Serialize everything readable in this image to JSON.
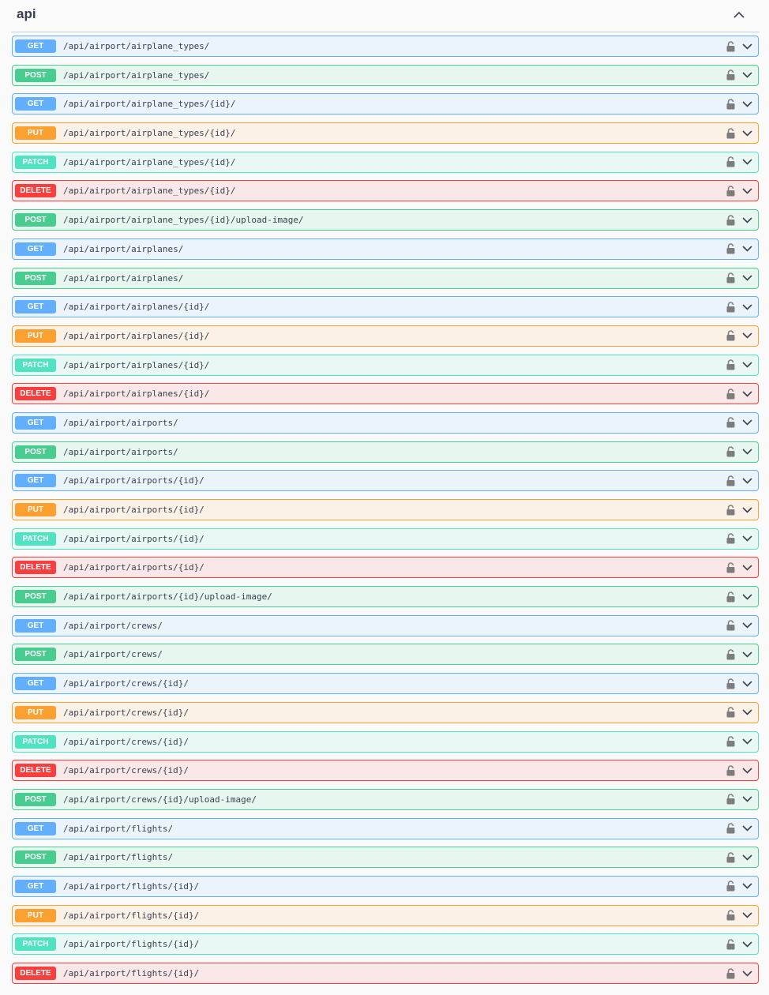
{
  "tag": {
    "title": "api",
    "toggle_icon": "chevron-up-icon"
  },
  "colors": {
    "get": "#61affe",
    "post": "#49cc90",
    "put": "#fca130",
    "patch": "#50e3c2",
    "delete": "#f93e3e"
  },
  "operations": [
    {
      "method": "GET",
      "path": "/api/airport/airplane_types/"
    },
    {
      "method": "POST",
      "path": "/api/airport/airplane_types/"
    },
    {
      "method": "GET",
      "path": "/api/airport/airplane_types/{id}/"
    },
    {
      "method": "PUT",
      "path": "/api/airport/airplane_types/{id}/"
    },
    {
      "method": "PATCH",
      "path": "/api/airport/airplane_types/{id}/"
    },
    {
      "method": "DELETE",
      "path": "/api/airport/airplane_types/{id}/"
    },
    {
      "method": "POST",
      "path": "/api/airport/airplane_types/{id}/upload-image/"
    },
    {
      "method": "GET",
      "path": "/api/airport/airplanes/"
    },
    {
      "method": "POST",
      "path": "/api/airport/airplanes/"
    },
    {
      "method": "GET",
      "path": "/api/airport/airplanes/{id}/"
    },
    {
      "method": "PUT",
      "path": "/api/airport/airplanes/{id}/"
    },
    {
      "method": "PATCH",
      "path": "/api/airport/airplanes/{id}/"
    },
    {
      "method": "DELETE",
      "path": "/api/airport/airplanes/{id}/"
    },
    {
      "method": "GET",
      "path": "/api/airport/airports/"
    },
    {
      "method": "POST",
      "path": "/api/airport/airports/"
    },
    {
      "method": "GET",
      "path": "/api/airport/airports/{id}/"
    },
    {
      "method": "PUT",
      "path": "/api/airport/airports/{id}/"
    },
    {
      "method": "PATCH",
      "path": "/api/airport/airports/{id}/"
    },
    {
      "method": "DELETE",
      "path": "/api/airport/airports/{id}/"
    },
    {
      "method": "POST",
      "path": "/api/airport/airports/{id}/upload-image/"
    },
    {
      "method": "GET",
      "path": "/api/airport/crews/"
    },
    {
      "method": "POST",
      "path": "/api/airport/crews/"
    },
    {
      "method": "GET",
      "path": "/api/airport/crews/{id}/"
    },
    {
      "method": "PUT",
      "path": "/api/airport/crews/{id}/"
    },
    {
      "method": "PATCH",
      "path": "/api/airport/crews/{id}/"
    },
    {
      "method": "DELETE",
      "path": "/api/airport/crews/{id}/"
    },
    {
      "method": "POST",
      "path": "/api/airport/crews/{id}/upload-image/"
    },
    {
      "method": "GET",
      "path": "/api/airport/flights/"
    },
    {
      "method": "POST",
      "path": "/api/airport/flights/"
    },
    {
      "method": "GET",
      "path": "/api/airport/flights/{id}/"
    },
    {
      "method": "PUT",
      "path": "/api/airport/flights/{id}/"
    },
    {
      "method": "PATCH",
      "path": "/api/airport/flights/{id}/"
    },
    {
      "method": "DELETE",
      "path": "/api/airport/flights/{id}/"
    }
  ],
  "row_icons": {
    "lock": "lock-icon",
    "expand": "chevron-down-icon"
  }
}
